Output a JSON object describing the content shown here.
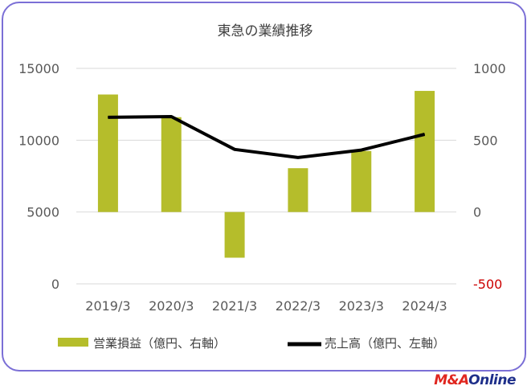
{
  "chart_data": {
    "type": "bar+line",
    "title": "東急の業績推移",
    "categories": [
      "2019/3",
      "2020/3",
      "2021/3",
      "2022/3",
      "2023/3",
      "2024/3"
    ],
    "series": [
      {
        "name": "営業損益（億円、右軸）",
        "kind": "bar",
        "axis": "right",
        "color": "#b5bd2b",
        "values": [
          818,
          660,
          -318,
          305,
          425,
          843
        ]
      },
      {
        "name": "売上高（億円、左軸）",
        "kind": "line",
        "axis": "left",
        "color": "#000000",
        "values": [
          11594,
          11642,
          9358,
          8791,
          9313,
          10411
        ]
      }
    ],
    "left_axis": {
      "ticks": [
        "15000",
        "10000",
        "5000",
        "0"
      ],
      "ylim": [
        0,
        15000
      ]
    },
    "right_axis": {
      "ticks": [
        "1000",
        "500",
        "0",
        "-500"
      ],
      "ylim": [
        -500,
        1000
      ],
      "negative_color": "#cc0000"
    },
    "grid": true,
    "legend": "bottom"
  },
  "logo": {
    "m": "M&A",
    "o": "Online"
  }
}
